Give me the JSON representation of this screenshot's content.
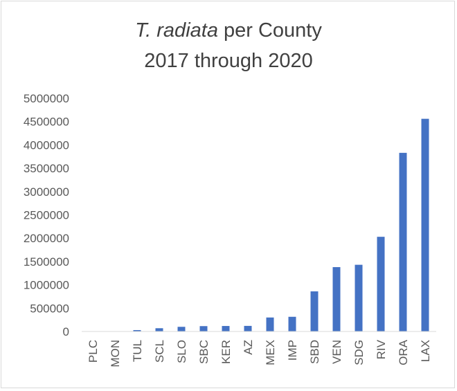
{
  "chart_data": {
    "type": "bar",
    "title_italic": "T. radiata",
    "title_rest": " per County",
    "subtitle": "2017 through 2020",
    "categories": [
      "PLC",
      "MON",
      "TUL",
      "SCL",
      "SLO",
      "SBC",
      "KER",
      "AZ",
      "MEX",
      "IMP",
      "SBD",
      "VEN",
      "SDG",
      "RIV",
      "ORA",
      "LAX"
    ],
    "values": [
      3000,
      5000,
      30000,
      70000,
      100000,
      115000,
      118000,
      120000,
      300000,
      315000,
      860000,
      1380000,
      1430000,
      2030000,
      3830000,
      4560000
    ],
    "ylim": [
      0,
      5000000
    ],
    "yticks": [
      "0",
      "500000",
      "1000000",
      "1500000",
      "2000000",
      "2500000",
      "3000000",
      "3500000",
      "4000000",
      "4500000",
      "5000000"
    ],
    "ytick_values": [
      0,
      500000,
      1000000,
      1500000,
      2000000,
      2500000,
      3000000,
      3500000,
      4000000,
      4500000,
      5000000
    ],
    "bar_color": "#4472c4",
    "grid": false,
    "legend": "none"
  }
}
